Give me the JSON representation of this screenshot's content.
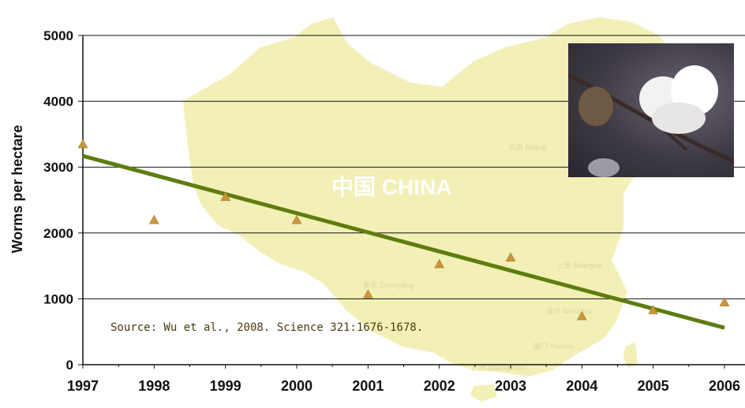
{
  "chart_data": {
    "type": "scatter",
    "title": "",
    "xlabel": "",
    "ylabel": "Worms per hectare",
    "x_ticks": [
      "1997",
      "1998",
      "1999",
      "2000",
      "2001",
      "2002",
      "2003",
      "2004",
      "2005",
      "2006"
    ],
    "y_ticks": [
      "0",
      "1000",
      "2000",
      "3000",
      "4000",
      "5000"
    ],
    "ylim": [
      0,
      5000
    ],
    "xlim": [
      1997,
      2006
    ],
    "series": [
      {
        "marker": "triangle",
        "color": "#c8963e",
        "x": [
          1997,
          1998,
          1999,
          2000,
          2001,
          2002,
          2003,
          2004,
          2005,
          2006
        ],
        "y": [
          3350,
          2200,
          2550,
          2200,
          1070,
          1530,
          1630,
          740,
          830,
          950
        ]
      }
    ],
    "trendline": {
      "color": "#5e7d10",
      "x": [
        1997,
        2006
      ],
      "y": [
        3170,
        560
      ]
    },
    "gridlines": "horizontal",
    "annotations": [
      "Source: Wu et al., 2008.  Science 321:1676-1678."
    ]
  },
  "background": {
    "map_title": "中国 CHINA",
    "city_labels": [
      "北京 Beijing",
      "重庆 Chongqing",
      "上海 Shanghai",
      "温州 Wenzhou",
      "厦门 Xiamen",
      "广州 Guangzhou"
    ],
    "map_color": "#f2f0b6"
  },
  "photo": {
    "subject": "cotton-boll-photo"
  }
}
